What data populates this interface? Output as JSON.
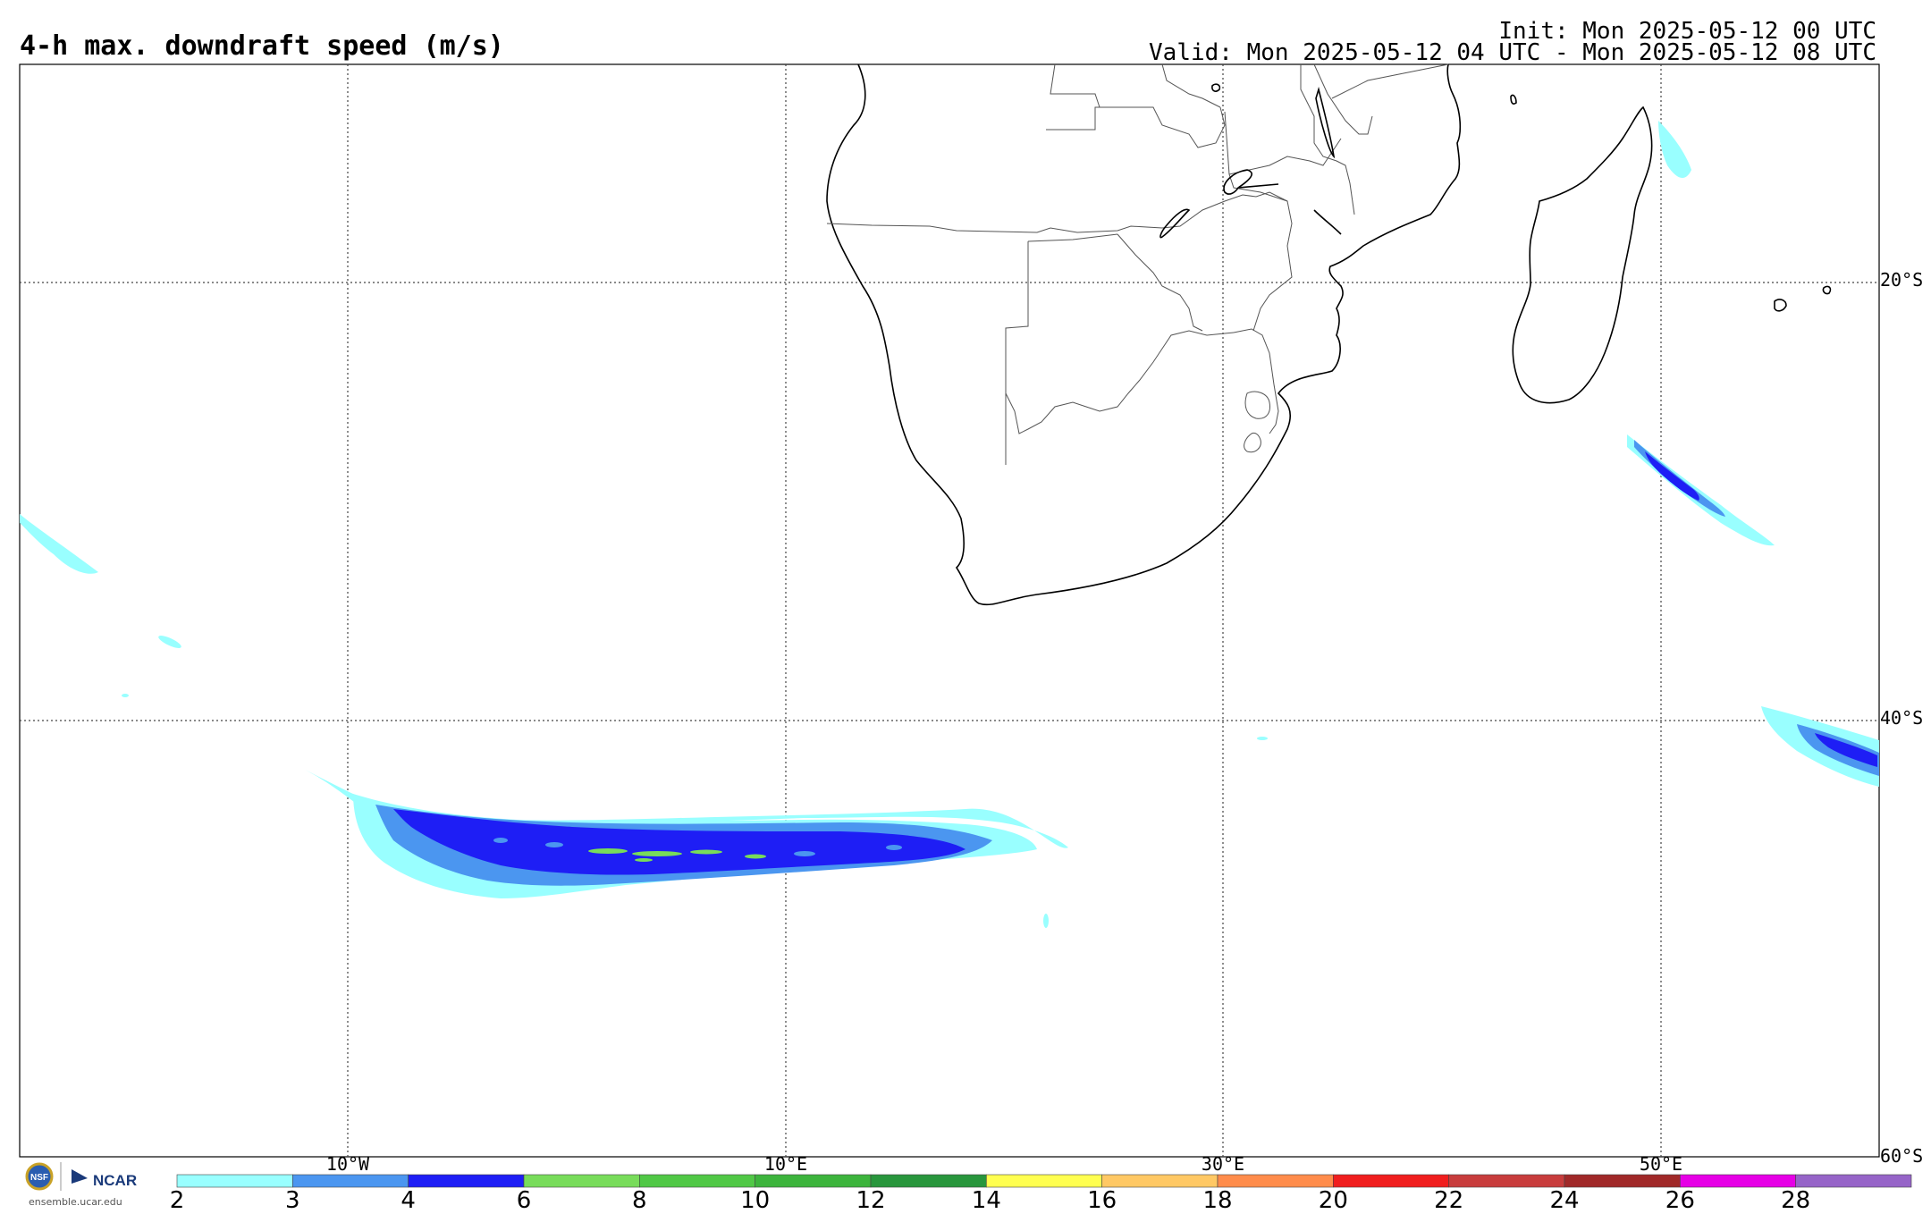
{
  "header": {
    "title": "4-h max. downdraft speed (m/s)",
    "init": "Init: Mon 2025-05-12 00 UTC",
    "valid": "Valid: Mon 2025-05-12 04 UTC - Mon 2025-05-12 08 UTC"
  },
  "map": {
    "lat_labels": [
      "20°S",
      "40°S",
      "60°S"
    ],
    "lon_labels": [
      "10°W",
      "10°E",
      "30°E",
      "50°E"
    ],
    "grid_style": "dotted"
  },
  "colorbar": {
    "labels": [
      "2",
      "3",
      "4",
      "6",
      "8",
      "10",
      "12",
      "14",
      "16",
      "18",
      "20",
      "22",
      "24",
      "26",
      "28"
    ],
    "colors": [
      "#99ffff",
      "#4b96f0",
      "#1e1ef5",
      "#78dc5a",
      "#50c846",
      "#3cb43c",
      "#28963c",
      "#ffff50",
      "#ffc864",
      "#ff8c4b",
      "#f01e1e",
      "#c83c3c",
      "#a02828",
      "#e600e6",
      "#9664c8"
    ]
  },
  "logo": {
    "org": "NCAR",
    "url": "ensemble.ucar.edu"
  },
  "colors": {
    "light": "#99ffff",
    "mid": "#4b96f0",
    "dark": "#1e1ef5",
    "green": "#78dc5a"
  }
}
